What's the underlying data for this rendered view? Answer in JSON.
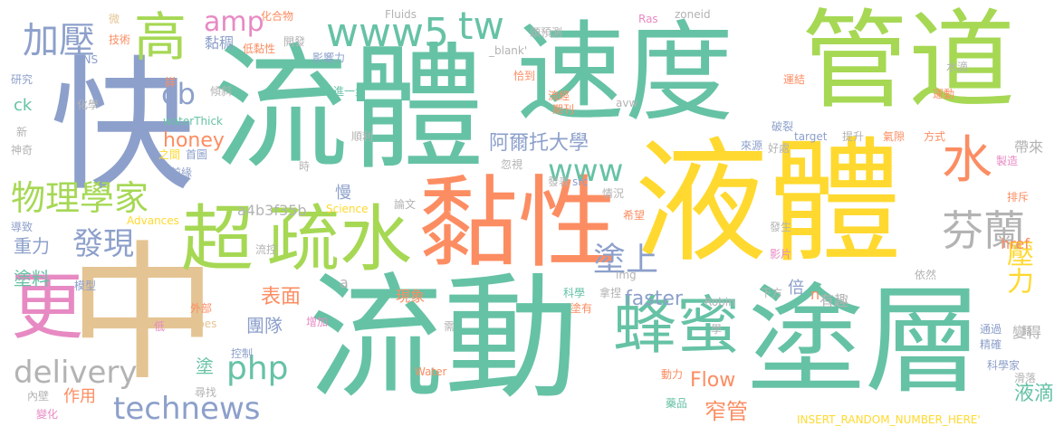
{
  "palette": {
    "teal": "#66c2a5",
    "orange": "#fc8d62",
    "blue": "#8da0cb",
    "pink": "#e78ac3",
    "green": "#a6d854",
    "yellow": "#ffd92f",
    "tan": "#e5c494",
    "grey": "#b3b3b3"
  },
  "words": [
    {
      "text": "流體",
      "color": "#66c2a5"
    },
    {
      "text": "速度",
      "color": "#66c2a5"
    },
    {
      "text": "管道",
      "color": "#a6d854"
    },
    {
      "text": "液體",
      "color": "#ffd92f"
    },
    {
      "text": "流動",
      "color": "#66c2a5"
    },
    {
      "text": "塗層",
      "color": "#66c2a5"
    },
    {
      "text": "中",
      "color": "#e5c494"
    },
    {
      "text": "快",
      "color": "#8da0cb"
    },
    {
      "text": "黏性",
      "color": "#fc8d62"
    },
    {
      "text": "超",
      "color": "#a6d854"
    },
    {
      "text": "疏水",
      "color": "#a6d854"
    },
    {
      "text": "更",
      "color": "#e78ac3"
    },
    {
      "text": "蜂蜜",
      "color": "#66c2a5"
    },
    {
      "text": "高",
      "color": "#a6d854"
    },
    {
      "text": "加壓",
      "color": "#8da0cb"
    },
    {
      "text": "www5",
      "color": "#66c2a5"
    },
    {
      "text": "tw",
      "color": "#66c2a5"
    },
    {
      "text": "amp",
      "color": "#e78ac3"
    },
    {
      "text": "cb",
      "color": "#8da0cb"
    },
    {
      "text": "物理學家",
      "color": "#a6d854"
    },
    {
      "text": "水",
      "color": "#fc8d62"
    },
    {
      "text": "www",
      "color": "#66c2a5"
    },
    {
      "text": "芬蘭",
      "color": "#b3b3b3"
    },
    {
      "text": "壓力",
      "color": "#ffd92f"
    },
    {
      "text": "發現",
      "color": "#8da0cb"
    },
    {
      "text": "delivery",
      "color": "#b3b3b3"
    },
    {
      "text": "technews",
      "color": "#8da0cb"
    },
    {
      "text": "php",
      "color": "#66c2a5"
    },
    {
      "text": "塗上",
      "color": "#8da0cb"
    },
    {
      "text": "honey",
      "color": "#fc8d62"
    },
    {
      "text": "阿爾托大學",
      "color": "#8da0cb"
    },
    {
      "text": "faster",
      "color": "#8da0cb"
    },
    {
      "text": "Flow",
      "color": "#fc8d62"
    },
    {
      "text": "窄管",
      "color": "#fc8d62"
    },
    {
      "text": "液滴",
      "color": "#66c2a5"
    },
    {
      "text": "重力",
      "color": "#8da0cb"
    },
    {
      "text": "塗料",
      "color": "#66c2a5"
    },
    {
      "text": "表面",
      "color": "#fc8d62"
    },
    {
      "text": "團隊",
      "color": "#8da0cb"
    },
    {
      "text": "a4b3f35b",
      "color": "#b3b3b3"
    },
    {
      "text": "作用",
      "color": "#fc8d62"
    },
    {
      "text": "塗",
      "color": "#66c2a5"
    },
    {
      "text": "黏稠",
      "color": "#8da0cb"
    },
    {
      "text": "帶來",
      "color": "#b3b3b3"
    },
    {
      "text": "href",
      "color": "#fc8d62"
    },
    {
      "text": "變得",
      "color": "#b3b3b3"
    },
    {
      "text": "有趣",
      "color": "#b3b3b3"
    },
    {
      "text": "倍",
      "color": "#8da0cb"
    },
    {
      "text": "慢",
      "color": "#8da0cb"
    },
    {
      "text": "現象",
      "color": "#fc8d62"
    },
    {
      "text": "ck",
      "color": "#66c2a5"
    },
    {
      "text": "Fluids",
      "color": "#b3b3b3"
    },
    {
      "text": "zoneid",
      "color": "#b3b3b3"
    },
    {
      "text": "Ras",
      "color": "#e78ac3"
    },
    {
      "text": "微",
      "color": "#e5c494"
    },
    {
      "text": "化合物",
      "color": "#fc8d62"
    },
    {
      "text": "技術",
      "color": "#fc8d62"
    },
    {
      "text": "INS",
      "color": "#8da0cb"
    },
    {
      "text": "研究",
      "color": "#8da0cb"
    },
    {
      "text": "低黏性",
      "color": "#fc8d62"
    },
    {
      "text": "開發",
      "color": "#b3b3b3"
    },
    {
      "text": "頭預測",
      "color": "#b3b3b3"
    },
    {
      "text": "_blank'",
      "color": "#b3b3b3"
    },
    {
      "text": "影響力",
      "color": "#8da0cb"
    },
    {
      "text": "恰到",
      "color": "#fc8d62"
    },
    {
      "text": "進一步",
      "color": "#66c2a5"
    },
    {
      "text": "傾斜",
      "color": "#b3b3b3"
    },
    {
      "text": "詳",
      "color": "#fc8d62"
    },
    {
      "text": "化學",
      "color": "#b3b3b3"
    },
    {
      "text": "新",
      "color": "#b3b3b3"
    },
    {
      "text": "神奇",
      "color": "#b3b3b3"
    },
    {
      "text": "waterThick",
      "color": "#66c2a5"
    },
    {
      "text": "順利",
      "color": "#b3b3b3"
    },
    {
      "text": "時",
      "color": "#b3b3b3"
    },
    {
      "text": "之間",
      "color": "#ffd92f"
    },
    {
      "text": "首圖",
      "color": "#8da0cb"
    },
    {
      "text": "前緣",
      "color": "#8da0cb"
    },
    {
      "text": "Advances",
      "color": "#ffd92f"
    },
    {
      "text": "導致",
      "color": "#8da0cb"
    },
    {
      "text": "模型",
      "color": "#8da0cb"
    },
    {
      "text": "流控",
      "color": "#b3b3b3"
    },
    {
      "text": "Science",
      "color": "#ffd92f"
    },
    {
      "text": "論文",
      "color": "#b3b3b3"
    },
    {
      "text": "發表",
      "color": "#b3b3b3"
    },
    {
      "text": "src",
      "color": "#8da0cb"
    },
    {
      "text": "情況",
      "color": "#b3b3b3"
    },
    {
      "text": "忽視",
      "color": "#b3b3b3"
    },
    {
      "text": "流經",
      "color": "#fc8d62"
    },
    {
      "text": "期刊",
      "color": "#fc8d62"
    },
    {
      "text": "avw",
      "color": "#b3b3b3"
    },
    {
      "text": "水滴",
      "color": "#b3b3b3"
    },
    {
      "text": "運結",
      "color": "#fc8d62"
    },
    {
      "text": "破裂",
      "color": "#8da0cb"
    },
    {
      "text": "運動",
      "color": "#fc8d62"
    },
    {
      "text": "target",
      "color": "#8da0cb"
    },
    {
      "text": "提升",
      "color": "#b3b3b3"
    },
    {
      "text": "氣隙",
      "color": "#fc8d62"
    },
    {
      "text": "方式",
      "color": "#fc8d62"
    },
    {
      "text": "來源",
      "color": "#8da0cb"
    },
    {
      "text": "好處",
      "color": "#b3b3b3"
    },
    {
      "text": "製造",
      "color": "#e78ac3"
    },
    {
      "text": "排斥",
      "color": "#fc8d62"
    },
    {
      "text": "希望",
      "color": "#fc8d62"
    },
    {
      "text": "發生",
      "color": "#b3b3b3"
    },
    {
      "text": "影片",
      "color": "#e78ac3"
    },
    {
      "text": "img",
      "color": "#b3b3b3"
    },
    {
      "text": "依然",
      "color": "#b3b3b3"
    },
    {
      "text": "科學",
      "color": "#66c2a5"
    },
    {
      "text": "拿捏",
      "color": "#b3b3b3"
    },
    {
      "text": "Robin",
      "color": "#b3b3b3"
    },
    {
      "text": "下方",
      "color": "#b3b3b3"
    },
    {
      "text": "n",
      "color": "#fc8d62"
    },
    {
      "text": "a",
      "color": "#b3b3b3"
    },
    {
      "text": "塗有",
      "color": "#fc8d62"
    },
    {
      "text": "學",
      "color": "#b3b3b3"
    },
    {
      "text": "需",
      "color": "#b3b3b3"
    },
    {
      "text": "外部",
      "color": "#fc8d62"
    },
    {
      "text": "Tubes",
      "color": "#e5c494"
    },
    {
      "text": "低",
      "color": "#e78ac3"
    },
    {
      "text": "增加",
      "color": "#e78ac3"
    },
    {
      "text": "控制",
      "color": "#8da0cb"
    },
    {
      "text": "尋找",
      "color": "#b3b3b3"
    },
    {
      "text": "Water",
      "color": "#fc8d62"
    },
    {
      "text": "動力",
      "color": "#fc8d62"
    },
    {
      "text": "藥品",
      "color": "#66c2a5"
    },
    {
      "text": "INSERT_RANDOM_NUMBER_HERE'",
      "color": "#ffd92f"
    },
    {
      "text": "內壁",
      "color": "#b3b3b3"
    },
    {
      "text": "變化",
      "color": "#e78ac3"
    },
    {
      "text": "通過",
      "color": "#8da0cb"
    },
    {
      "text": "精確",
      "color": "#8da0cb"
    },
    {
      "text": "藉",
      "color": "#b3b3b3"
    },
    {
      "text": "科學家",
      "color": "#8da0cb"
    },
    {
      "text": "滑落",
      "color": "#b3b3b3"
    }
  ]
}
